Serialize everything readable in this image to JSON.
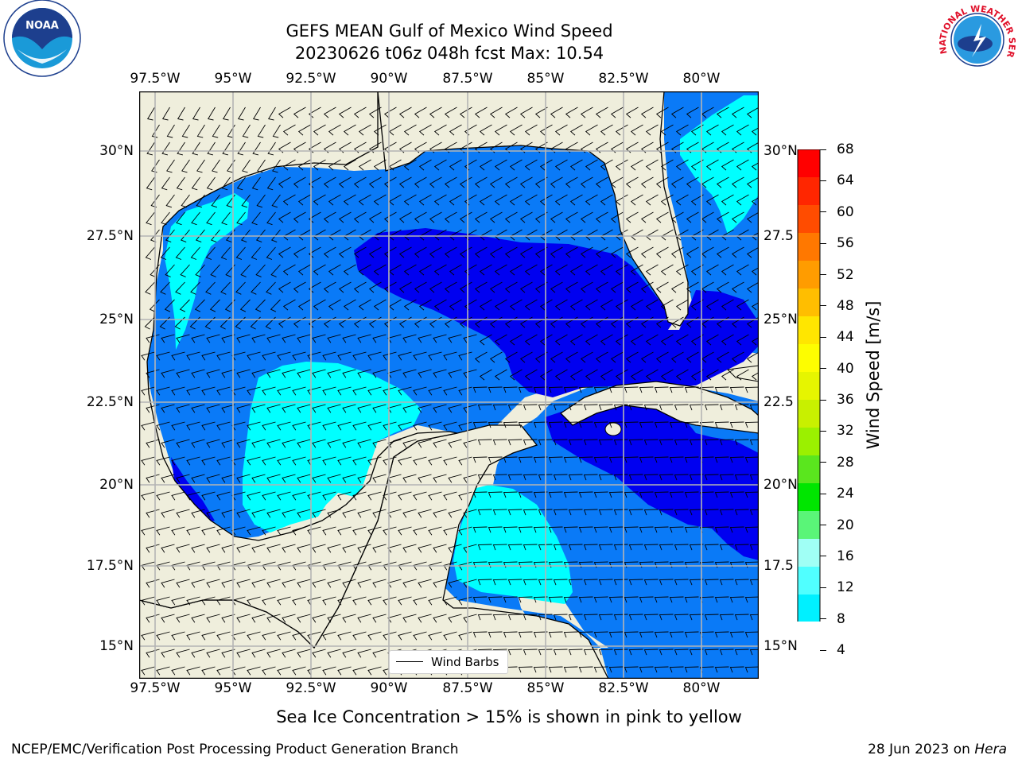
{
  "header": {
    "title_line1": "GEFS MEAN Gulf of Mexico Wind Speed",
    "title_line2": "20230626 t06z 048h fcst   Max: 10.54"
  },
  "logos": {
    "noara": "NOAA",
    "nws_ring": "NATIONAL WEATHER SERVICE"
  },
  "map": {
    "lon_ticks": [
      "97.5°W",
      "95°W",
      "92.5°W",
      "90°W",
      "87.5°W",
      "85°W",
      "82.5°W",
      "80°W"
    ],
    "lat_ticks_left": [
      "30°N",
      "27.5°N",
      "25°N",
      "22.5°N",
      "20°N",
      "17.5°N",
      "15°N"
    ],
    "lat_ticks_right": [
      "30°N",
      "27.5",
      "25°N",
      "22.5",
      "20°N",
      "17.5",
      "15°N"
    ],
    "legend_label": "Wind Barbs",
    "colors": {
      "land": "#efeedc",
      "band_4_8": "#0a7af7",
      "band_0_4": "#0000f0",
      "band_8_12": "#00ffff"
    }
  },
  "colorbar": {
    "label": "Wind Speed [m/s]",
    "ticks": [
      "68",
      "64",
      "60",
      "56",
      "52",
      "48",
      "44",
      "40",
      "36",
      "32",
      "28",
      "24",
      "20",
      "16",
      "12",
      "8",
      "4"
    ],
    "colors": [
      "#ff0000",
      "#ff2600",
      "#ff4c00",
      "#ff7800",
      "#ff9c00",
      "#ffbe00",
      "#ffe600",
      "#fdfd00",
      "#e6f500",
      "#c8f000",
      "#9bf000",
      "#5ae61e",
      "#00e600",
      "#5af578",
      "#a0fff5",
      "#50ffff",
      "#00f0ff",
      "#0a7af7",
      "#0000f0"
    ]
  },
  "footer": {
    "note": "Sea Ice Concentration > 15% is shown in pink to yellow",
    "left": "NCEP/EMC/Verification Post Processing Product Generation Branch",
    "date": "28 Jun 2023 on ",
    "host": "Hera"
  }
}
